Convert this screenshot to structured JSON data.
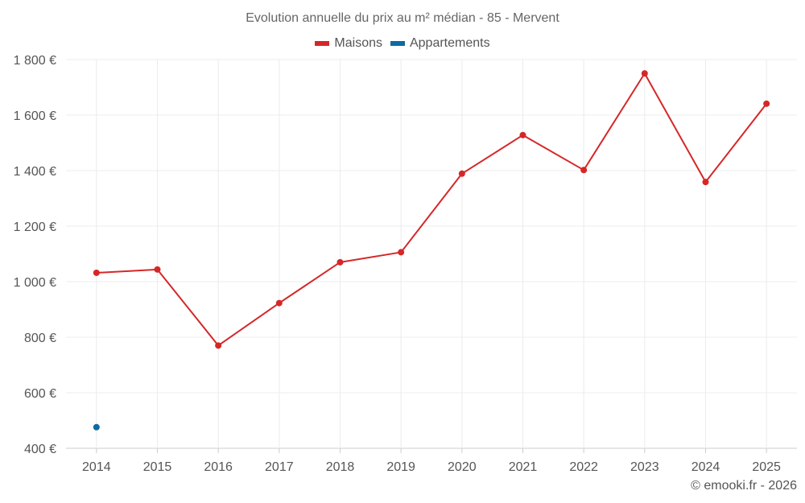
{
  "chart_data": {
    "type": "line",
    "title": "Evolution annuelle du prix au m² médian - 85 - Mervent",
    "categories": [
      "2014",
      "2015",
      "2016",
      "2017",
      "2018",
      "2019",
      "2020",
      "2021",
      "2022",
      "2023",
      "2024",
      "2025"
    ],
    "series": [
      {
        "name": "Maisons",
        "color": "#d62728",
        "values": [
          1032,
          1044,
          770,
          923,
          1070,
          1106,
          1389,
          1528,
          1402,
          1750,
          1359,
          1641
        ]
      },
      {
        "name": "Appartements",
        "color": "#0e6aa3",
        "values": [
          476,
          null,
          null,
          null,
          null,
          null,
          null,
          null,
          null,
          null,
          null,
          null
        ]
      }
    ],
    "ylim": [
      400,
      1800
    ],
    "yticks": [
      400,
      600,
      800,
      1000,
      1200,
      1400,
      1600,
      1800
    ],
    "ytick_labels": [
      "400 €",
      "600 €",
      "800 €",
      "1 000 €",
      "1 200 €",
      "1 400 €",
      "1 600 €",
      "1 800 €"
    ],
    "xlabel": "",
    "ylabel": "",
    "grid": true,
    "legend_position": "top-center"
  },
  "credit": "© emooki.fr - 2026"
}
